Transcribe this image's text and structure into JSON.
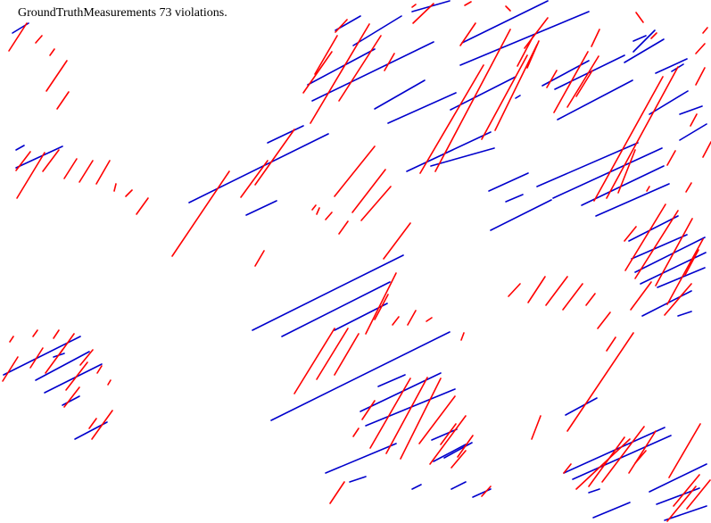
{
  "title": "GroundTruthMeasurements 73 violations.",
  "colors": {
    "red": "#ff0000",
    "blue": "#0000cc"
  }
}
